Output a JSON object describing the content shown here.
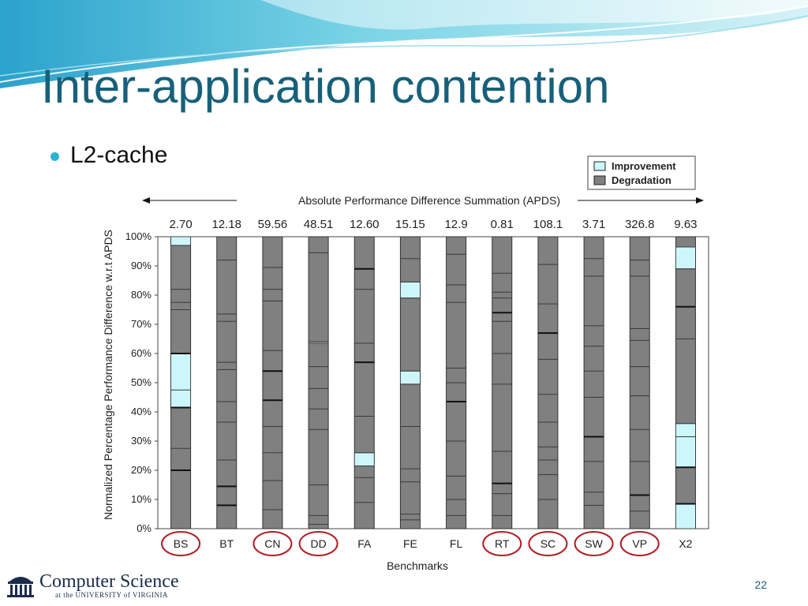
{
  "slide": {
    "title": "Inter-application contention",
    "bullet": "L2-cache",
    "page_number": "22",
    "accent_color": "#17607a",
    "bullet_color": "#2bb5d0",
    "footer": {
      "logo_icon": "rotunda-logo-icon",
      "name": "Computer Science",
      "sub": "at the UNIVERSITY of VIRGINIA"
    }
  },
  "chart_data": {
    "type": "bar",
    "stacked": true,
    "title": "",
    "top_label": "Absolute Performance Difference Summation (APDS)",
    "xlabel": "Benchmarks",
    "ylabel": "Normalized Percentage  Performance Difference w.r.t APDS",
    "ylim": [
      0,
      100
    ],
    "yticks": [
      "0%",
      "10%",
      "20%",
      "30%",
      "40%",
      "50%",
      "60%",
      "70%",
      "80%",
      "90%",
      "100%"
    ],
    "legend": {
      "position": "top-right",
      "items": [
        {
          "name": "Improvement",
          "color": "#ccf6fa"
        },
        {
          "name": "Degradation",
          "color": "#808080"
        }
      ]
    },
    "circled": [
      "BS",
      "CN",
      "DD",
      "RT",
      "SC",
      "SW",
      "VP"
    ],
    "circle_color": "#b01e24",
    "categories": [
      "BS",
      "BT",
      "CN",
      "DD",
      "FA",
      "FE",
      "FL",
      "RT",
      "SC",
      "SW",
      "VP",
      "X2"
    ],
    "apds": [
      "2.70",
      "12.18",
      "59.56",
      "48.51",
      "12.60",
      "15.15",
      "12.9",
      "0.81",
      "108.1",
      "3.71",
      "326.8",
      "9.63"
    ],
    "bars": [
      {
        "improvement": [
          [
            97,
            100
          ],
          [
            41.5,
            60
          ]
        ],
        "lines": [
          20,
          27.5,
          41.5,
          47.5,
          60,
          75,
          77.5,
          82,
          97
        ],
        "thick": [
          20,
          41.5,
          60
        ]
      },
      {
        "improvement": [],
        "lines": [
          8,
          14.5,
          23.5,
          36.5,
          43.5,
          54.5,
          57,
          71,
          73.5,
          92
        ],
        "thick": [
          8,
          14.5
        ]
      },
      {
        "improvement": [],
        "lines": [
          6.5,
          16.5,
          26,
          35,
          44,
          54,
          61,
          78,
          82,
          89.5
        ],
        "thick": [
          44,
          54
        ]
      },
      {
        "improvement": [
          [
            63.5,
            64
          ]
        ],
        "lines": [
          1.5,
          4.5,
          15,
          34,
          41,
          48,
          55.5,
          63.5,
          64,
          94.5
        ],
        "thick": []
      },
      {
        "improvement": [
          [
            21.5,
            26
          ]
        ],
        "lines": [
          9,
          17.5,
          21.5,
          26,
          38.5,
          57,
          63.5,
          82,
          89
        ],
        "thick": [
          57,
          89
        ]
      },
      {
        "improvement": [
          [
            49.5,
            54
          ],
          [
            79,
            84.5
          ]
        ],
        "lines": [
          3,
          5,
          16,
          20.5,
          35,
          49.5,
          54,
          79,
          84.5,
          92.5
        ],
        "thick": []
      },
      {
        "improvement": [],
        "lines": [
          4.5,
          10,
          18,
          30,
          43.5,
          50,
          55,
          77.5,
          83.5,
          94
        ],
        "thick": [
          43.5
        ]
      },
      {
        "improvement": [],
        "lines": [
          4.5,
          12,
          15.5,
          26.5,
          49.5,
          60,
          71,
          74,
          79,
          81,
          87.5
        ],
        "thick": [
          15.5,
          74
        ]
      },
      {
        "improvement": [],
        "lines": [
          10,
          18.5,
          23.5,
          28,
          36.5,
          46,
          58,
          67,
          77,
          90.5
        ],
        "thick": [
          67
        ]
      },
      {
        "improvement": [],
        "lines": [
          8,
          12.5,
          23,
          31.5,
          45,
          54,
          62.5,
          69.5,
          86.5,
          92.5
        ],
        "thick": [
          31.5
        ]
      },
      {
        "improvement": [],
        "lines": [
          6,
          11.5,
          23,
          34,
          45.5,
          55.5,
          64.5,
          68.5,
          86.5,
          92
        ],
        "thick": [
          11.5
        ]
      },
      {
        "improvement": [
          [
            0,
            8.5
          ],
          [
            21,
            36
          ],
          [
            89,
            96.5
          ]
        ],
        "lines": [
          8.5,
          21,
          31.5,
          36,
          65,
          76,
          89,
          96.5
        ],
        "thick": [
          8.5,
          21,
          76
        ]
      }
    ]
  }
}
